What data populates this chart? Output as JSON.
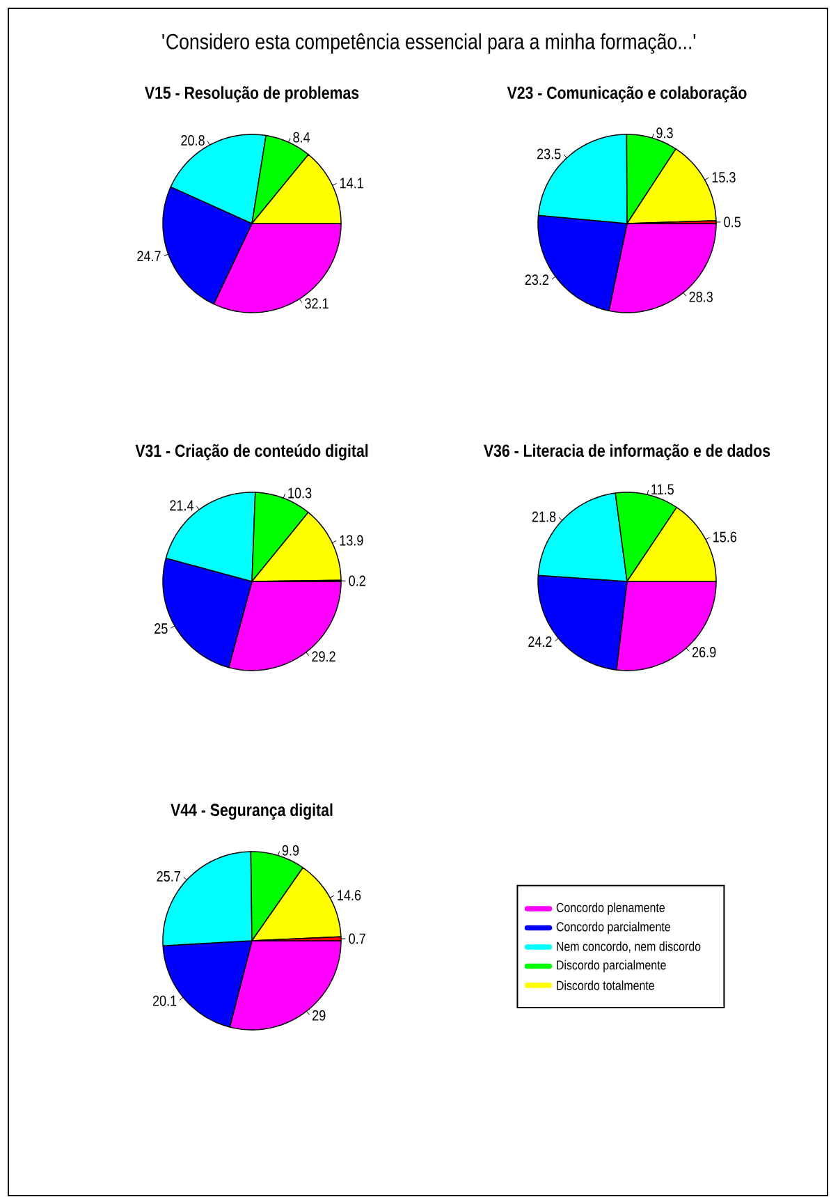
{
  "chart_data": [
    {
      "type": "pie",
      "title": "V15 - Resolução de problemas",
      "annotations": [
        "'Considero esta competência essencial para a minha formação...'"
      ],
      "categories": [
        null,
        null,
        null,
        null,
        null
      ],
      "values": [
        32.1,
        24.7,
        20.8,
        8.4,
        14.1
      ],
      "colors": [
        "#ff00ff",
        "#0000ff",
        "#00ffff",
        "#00ff00",
        "#ffff00"
      ],
      "data_labels": true
    },
    {
      "type": "pie",
      "title": "V23 - Comunicação e colaboração",
      "categories": [
        null,
        null,
        null,
        null,
        null,
        null
      ],
      "values": [
        28.3,
        23.2,
        23.5,
        9.3,
        15.3,
        0.5
      ],
      "colors": [
        "#ff00ff",
        "#0000ff",
        "#00ffff",
        "#00ff00",
        "#ffff00",
        "#ff0000"
      ],
      "data_labels": true
    },
    {
      "type": "pie",
      "title": "V31 - Criação de conteúdo digital",
      "categories": [
        null,
        null,
        null,
        null,
        null,
        null
      ],
      "values": [
        29.2,
        25,
        21.4,
        10.3,
        13.9,
        0.2
      ],
      "colors": [
        "#ff00ff",
        "#0000ff",
        "#00ffff",
        "#00ff00",
        "#ffff00",
        "#ff0000"
      ],
      "data_labels": true
    },
    {
      "type": "pie",
      "title": "V36 - Literacia de informação e de dados",
      "categories": [
        null,
        null,
        null,
        null,
        null
      ],
      "values": [
        26.9,
        24.2,
        21.8,
        11.5,
        15.6
      ],
      "colors": [
        "#ff00ff",
        "#0000ff",
        "#00ffff",
        "#00ff00",
        "#ffff00"
      ],
      "data_labels": true
    },
    {
      "type": "pie",
      "title": "V44 - Segurança digital",
      "categories": [
        "Concordo plenamente",
        "Concordo parcialmente",
        "Nem concordo, nem discordo",
        "Discordo parcialmente",
        "Discordo totalmente",
        null
      ],
      "values": [
        29,
        20.1,
        25.7,
        9.9,
        14.6,
        0.7
      ],
      "colors": [
        "#ff00ff",
        "#0000ff",
        "#00ffff",
        "#00ff00",
        "#ffff00",
        "#ff0000"
      ],
      "data_labels": true,
      "legend": "right"
    }
  ]
}
